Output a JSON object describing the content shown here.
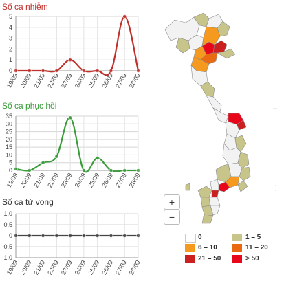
{
  "chart_data": [
    {
      "type": "line",
      "title": "Số ca nhiễm",
      "title_color": "#c0302b",
      "color": "#c0302b",
      "x": [
        "19/09",
        "20/09",
        "21/09",
        "22/09",
        "23/09",
        "24/09",
        "25/09",
        "26/09",
        "27/09",
        "28/09"
      ],
      "values": [
        0,
        0,
        0,
        0,
        1,
        0,
        0,
        0,
        5,
        0
      ],
      "yticks": [
        0,
        1,
        2,
        3,
        4,
        5
      ],
      "ylim": [
        0,
        5
      ],
      "grid": true
    },
    {
      "type": "line",
      "title": "Số ca phục hồi",
      "title_color": "#3a9c3a",
      "color": "#3a9c3a",
      "x": [
        "19/09",
        "20/09",
        "21/09",
        "22/09",
        "23/09",
        "24/09",
        "25/09",
        "26/09",
        "27/09",
        "28/09"
      ],
      "values": [
        1,
        0,
        5,
        9,
        34,
        0,
        8,
        0,
        0,
        0
      ],
      "yticks": [
        0,
        5,
        10,
        15,
        20,
        25,
        30,
        35
      ],
      "ylim": [
        0,
        35
      ],
      "grid": true
    },
    {
      "type": "line",
      "title": "Số ca tử vong",
      "title_color": "#333333",
      "color": "#444444",
      "x": [
        "19/09",
        "20/09",
        "21/09",
        "22/09",
        "23/09",
        "24/09",
        "25/09",
        "26/09",
        "27/09",
        "28/09"
      ],
      "values": [
        0,
        0,
        0,
        0,
        0,
        0,
        0,
        0,
        0,
        0
      ],
      "yticks": [
        "-1.0",
        "-0.5",
        "0",
        "0.5",
        "1.0"
      ],
      "ytick_values": [
        -1,
        -0.5,
        0,
        0.5,
        1
      ],
      "ylim": [
        -1,
        1
      ],
      "grid": true
    }
  ],
  "map": {
    "zoom_in": "+",
    "zoom_out": "−",
    "colors": {
      "land_none": "#f2f2f2",
      "land_low": "#c8c58a",
      "land_mid": "#f6991f",
      "land_high": "#ea6a11",
      "land_dark": "#cc1f1f",
      "land_max": "#e8061b",
      "border": "#8a8a8a"
    }
  },
  "legend": [
    {
      "label": "0",
      "color": "#ffffff"
    },
    {
      "label": "1 – 5",
      "color": "#c8c58a"
    },
    {
      "label": "6 – 10",
      "color": "#f6991f"
    },
    {
      "label": "11 – 20",
      "color": "#ea6a11"
    },
    {
      "label": "21 – 50",
      "color": "#cc1f1f"
    },
    {
      "label": "> 50",
      "color": "#e8061b"
    }
  ]
}
